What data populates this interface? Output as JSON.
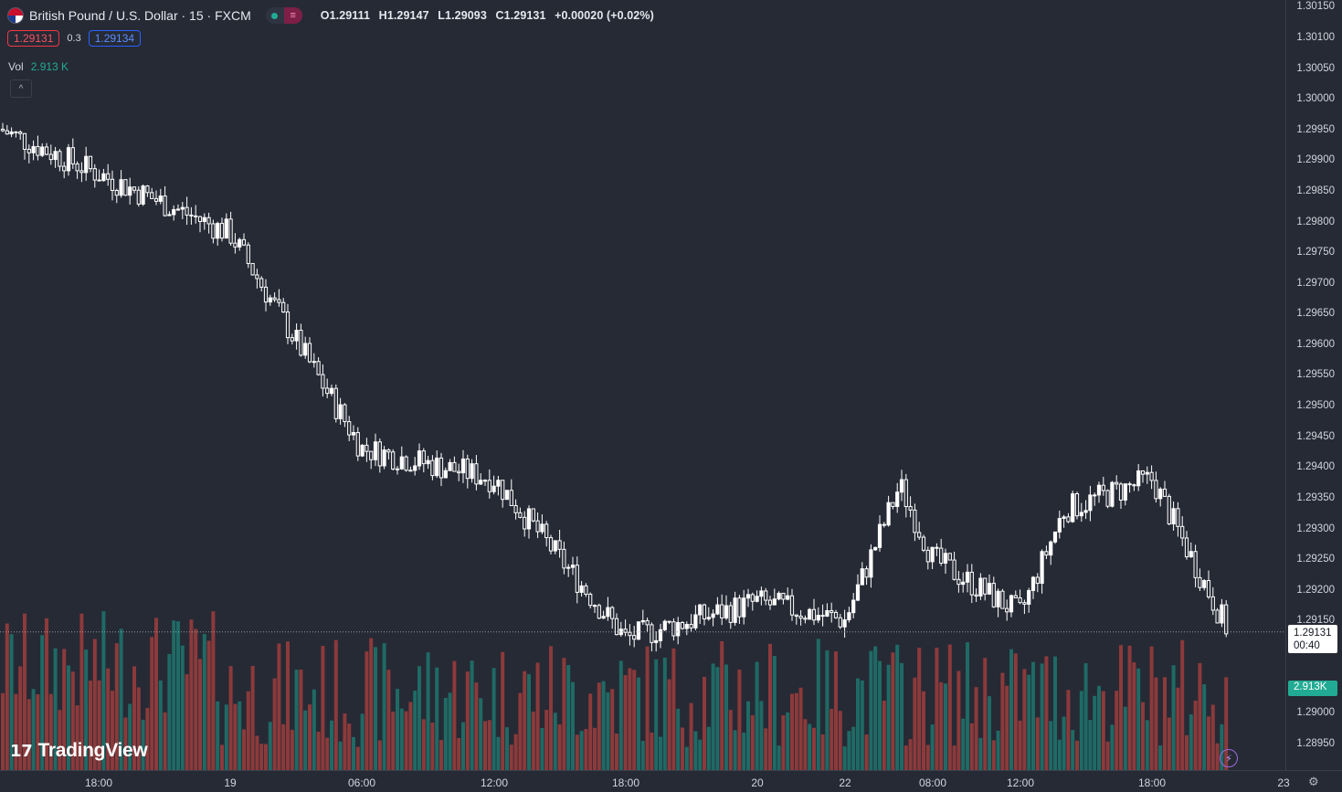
{
  "header": {
    "title": "British Pound / U.S. Dollar · 15 · FXCM",
    "ohlc": {
      "o_label": "O",
      "o": "1.29111",
      "h_label": "H",
      "h": "1.29147",
      "l_label": "L",
      "l": "1.29093",
      "c_label": "C",
      "c": "1.29131",
      "change": "+0.00020 (+0.02%)"
    },
    "market_icon": "≡"
  },
  "quote": {
    "sell": "1.29131",
    "spread": "0.3",
    "buy": "1.29134"
  },
  "volume": {
    "label": "Vol",
    "value": "2.913 K",
    "axis_label": "2.913K"
  },
  "current": {
    "price": "1.29131",
    "countdown": "00:40"
  },
  "logo": {
    "mark": "17",
    "text": "TradingView"
  },
  "colors": {
    "up": "#22ab94",
    "down": "#f23645",
    "vol_up": "#1f6a65",
    "vol_down": "#8c3a3b",
    "candle": "#ffffff"
  },
  "chart_data": {
    "type": "candlestick",
    "title": "British Pound / U.S. Dollar · 15 · FXCM",
    "y_ticks": [
      "1.30150",
      "1.30100",
      "1.30050",
      "1.30000",
      "1.29950",
      "1.29900",
      "1.29850",
      "1.29800",
      "1.29750",
      "1.29700",
      "1.29650",
      "1.29600",
      "1.29550",
      "1.29500",
      "1.29450",
      "1.29400",
      "1.29350",
      "1.29300",
      "1.29250",
      "1.29200",
      "1.29150",
      "1.29000",
      "1.28950"
    ],
    "x_ticks": [
      "18:00",
      "19",
      "06:00",
      "12:00",
      "18:00",
      "20",
      "22",
      "08:00",
      "12:00",
      "18:00",
      "23"
    ],
    "ylim": [
      1.2893,
      1.3017
    ],
    "current_price": 1.29131,
    "close_path_keypoints": [
      {
        "t": "start",
        "close": 1.2995
      },
      {
        "t": "19",
        "close": 1.2978
      },
      {
        "t": "06:00",
        "close": 1.2943
      },
      {
        "t": "12:00",
        "close": 1.2938
      },
      {
        "t": "18:00 (19)",
        "close": 1.2912
      },
      {
        "t": "20",
        "close": 1.2918
      },
      {
        "t": "22",
        "close": 1.2915
      },
      {
        "t": "22 peak",
        "close": 1.2937
      },
      {
        "t": "08:00",
        "close": 1.2925
      },
      {
        "t": "12:00",
        "close": 1.2916
      },
      {
        "t": "16:00",
        "close": 1.2933
      },
      {
        "t": "18:00",
        "close": 1.2938
      },
      {
        "t": "end",
        "close": 1.29131
      }
    ]
  }
}
